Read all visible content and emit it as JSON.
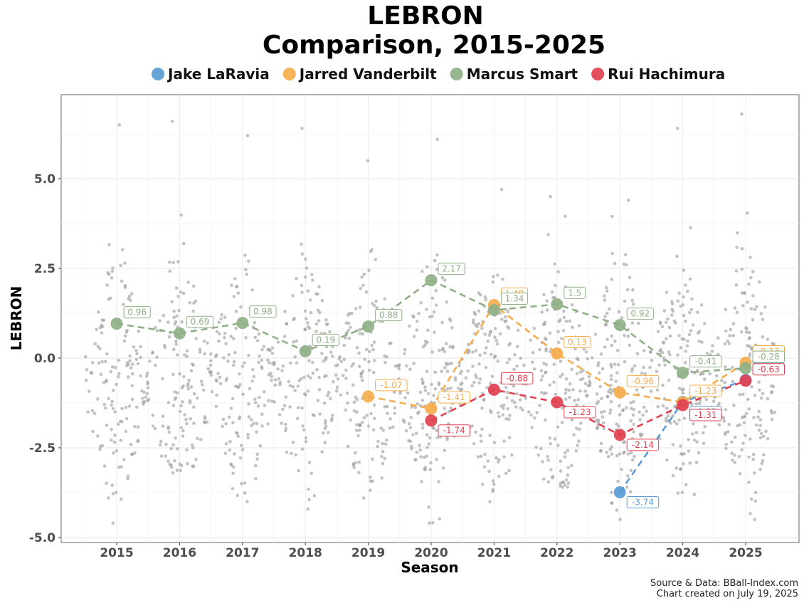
{
  "title_line1": "LEBRON",
  "title_line2": "Comparison, 2015-2025",
  "caption_line1": "Source & Data: BBall-Index.com",
  "caption_line2": "Chart created on July 19, 2025",
  "chart_data": {
    "type": "scatter",
    "title": "LEBRON Comparison, 2015-2025",
    "xlabel": "Season",
    "ylabel": "LEBRON",
    "categories": [
      "2015",
      "2016",
      "2017",
      "2018",
      "2019",
      "2020",
      "2021",
      "2022",
      "2023",
      "2024",
      "2025"
    ],
    "y_ticks": [
      5.0,
      2.5,
      0.0,
      -2.5,
      -5.0
    ],
    "y_tick_labels": [
      "5.0",
      "2.5",
      "0.0",
      "-2.5",
      "-5.0"
    ],
    "ylim": [
      -5.15,
      7.3
    ],
    "grid": true,
    "legend_position": "top",
    "series": [
      {
        "name": "Jake LaRavia",
        "color": "#5b9bd5",
        "points": [
          {
            "season": "2023",
            "value": -3.74
          },
          {
            "season": "2024",
            "value": -1.22
          },
          {
            "season": "2025",
            "value": -0.61
          }
        ]
      },
      {
        "name": "Jarred Vanderbilt",
        "color": "#f6ac4b",
        "points": [
          {
            "season": "2019",
            "value": -1.07
          },
          {
            "season": "2020",
            "value": -1.41
          },
          {
            "season": "2021",
            "value": 1.48
          },
          {
            "season": "2022",
            "value": 0.13
          },
          {
            "season": "2023",
            "value": -0.96
          },
          {
            "season": "2024",
            "value": -1.23
          },
          {
            "season": "2025",
            "value": -0.13
          }
        ]
      },
      {
        "name": "Marcus Smart",
        "color": "#8fb087",
        "points": [
          {
            "season": "2015",
            "value": 0.96
          },
          {
            "season": "2016",
            "value": 0.69
          },
          {
            "season": "2017",
            "value": 0.98
          },
          {
            "season": "2018",
            "value": 0.19
          },
          {
            "season": "2019",
            "value": 0.88
          },
          {
            "season": "2020",
            "value": 2.17
          },
          {
            "season": "2021",
            "value": 1.34
          },
          {
            "season": "2022",
            "value": 1.5
          },
          {
            "season": "2023",
            "value": 0.92
          },
          {
            "season": "2024",
            "value": -0.41
          },
          {
            "season": "2025",
            "value": -0.28
          }
        ]
      },
      {
        "name": "Rui Hachimura",
        "color": "#e0404f",
        "points": [
          {
            "season": "2020",
            "value": -1.74
          },
          {
            "season": "2021",
            "value": -0.88
          },
          {
            "season": "2022",
            "value": -1.23
          },
          {
            "season": "2023",
            "value": -2.14
          },
          {
            "season": "2024",
            "value": -1.31
          },
          {
            "season": "2025",
            "value": -0.63
          }
        ]
      }
    ],
    "background_points": {
      "description_color": "#9a9a9a",
      "by_season": {
        "2015": {
          "count": 150,
          "min": -4.6,
          "max": 6.5
        },
        "2016": {
          "count": 145,
          "min": -3.2,
          "max": 6.6
        },
        "2017": {
          "count": 145,
          "min": -4.0,
          "max": 6.2
        },
        "2018": {
          "count": 145,
          "min": -4.2,
          "max": 6.4
        },
        "2019": {
          "count": 150,
          "min": -3.9,
          "max": 5.5
        },
        "2020": {
          "count": 160,
          "min": -4.6,
          "max": 6.1
        },
        "2021": {
          "count": 160,
          "min": -4.0,
          "max": 4.7
        },
        "2022": {
          "count": 160,
          "min": -3.6,
          "max": 4.5
        },
        "2023": {
          "count": 165,
          "min": -4.5,
          "max": 4.4
        },
        "2024": {
          "count": 160,
          "min": -3.8,
          "max": 6.4
        },
        "2025": {
          "count": 165,
          "min": -4.5,
          "max": 6.8
        }
      }
    }
  }
}
